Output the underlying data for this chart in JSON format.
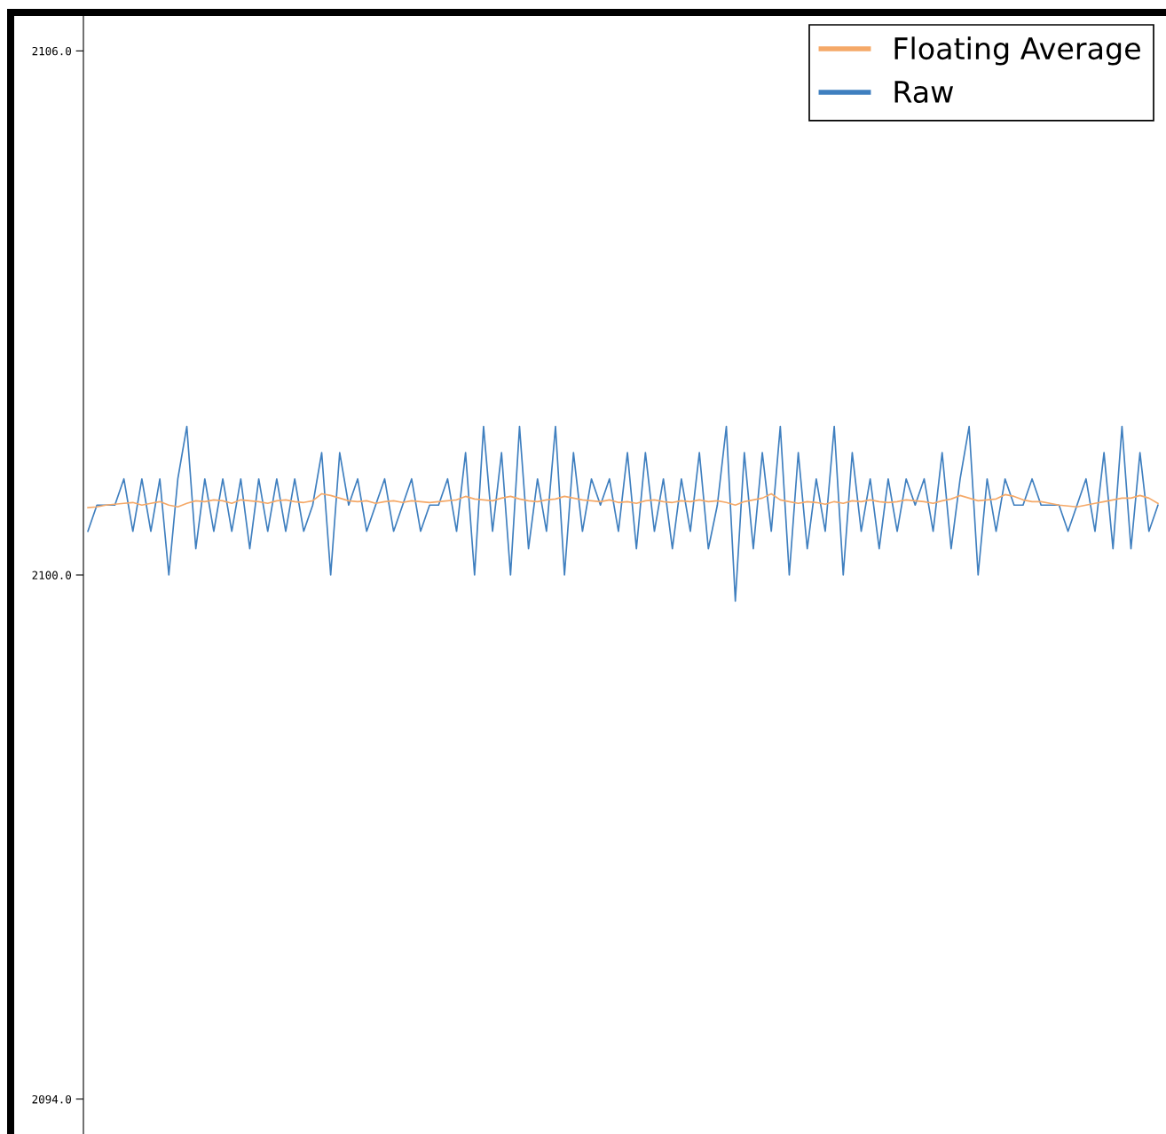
{
  "chart_data": {
    "type": "line",
    "categories": [
      null,
      null,
      null,
      null,
      null,
      null,
      null,
      null,
      null,
      null,
      null,
      null,
      null,
      null,
      null,
      null,
      null,
      null,
      null,
      null,
      null,
      null,
      null,
      null,
      null,
      null,
      null,
      null,
      null,
      null,
      null,
      null,
      null,
      null,
      null,
      null,
      null,
      null,
      null,
      null,
      null,
      null,
      null,
      null,
      null,
      null,
      null,
      null,
      null,
      null,
      null,
      null,
      null,
      null,
      null,
      null,
      null,
      null,
      null,
      null,
      null,
      null,
      null,
      null,
      null,
      null,
      null,
      null,
      null,
      null,
      null,
      null,
      null,
      null,
      null,
      null,
      null,
      null,
      null,
      null,
      null,
      null,
      null,
      null,
      null,
      null,
      null,
      null,
      null,
      null,
      null,
      null,
      null,
      null,
      null,
      null,
      null,
      null,
      null,
      null,
      null,
      null,
      null,
      null,
      null,
      null,
      null,
      null,
      null,
      null,
      null,
      null,
      null,
      null,
      null,
      null,
      null,
      null,
      null,
      null
    ],
    "series": [
      {
        "name": "Floating Average",
        "color": "#f5a968",
        "values": [
          2100.77,
          2100.78,
          2100.8,
          2100.81,
          2100.82,
          2100.83,
          2100.8,
          2100.82,
          2100.84,
          2100.8,
          2100.78,
          2100.82,
          2100.85,
          2100.84,
          2100.86,
          2100.85,
          2100.82,
          2100.86,
          2100.85,
          2100.84,
          2100.82,
          2100.85,
          2100.86,
          2100.84,
          2100.83,
          2100.85,
          2100.93,
          2100.91,
          2100.88,
          2100.85,
          2100.84,
          2100.85,
          2100.82,
          2100.84,
          2100.85,
          2100.83,
          2100.85,
          2100.84,
          2100.83,
          2100.84,
          2100.85,
          2100.86,
          2100.9,
          2100.87,
          2100.86,
          2100.85,
          2100.88,
          2100.9,
          2100.87,
          2100.85,
          2100.84,
          2100.86,
          2100.87,
          2100.9,
          2100.88,
          2100.86,
          2100.85,
          2100.84,
          2100.86,
          2100.83,
          2100.84,
          2100.82,
          2100.85,
          2100.86,
          2100.84,
          2100.83,
          2100.85,
          2100.84,
          2100.86,
          2100.84,
          2100.85,
          2100.83,
          2100.8,
          2100.84,
          2100.86,
          2100.88,
          2100.93,
          2100.86,
          2100.84,
          2100.82,
          2100.84,
          2100.83,
          2100.81,
          2100.84,
          2100.82,
          2100.85,
          2100.84,
          2100.86,
          2100.84,
          2100.83,
          2100.84,
          2100.86,
          2100.85,
          2100.84,
          2100.82,
          2100.85,
          2100.87,
          2100.91,
          2100.88,
          2100.85,
          2100.86,
          2100.87,
          2100.92,
          2100.9,
          2100.86,
          2100.84,
          2100.84,
          2100.82,
          2100.8,
          2100.79,
          2100.78,
          2100.8,
          2100.82,
          2100.84,
          2100.86,
          2100.88,
          2100.88,
          2100.91,
          2100.88,
          2100.82
        ]
      },
      {
        "name": "Raw",
        "color": "#3f7fbf",
        "values": [
          2100.5,
          2100.8,
          2100.8,
          2100.8,
          2101.1,
          2100.5,
          2101.1,
          2100.5,
          2101.1,
          2100.0,
          2101.1,
          2101.7,
          2100.3,
          2101.1,
          2100.5,
          2101.1,
          2100.5,
          2101.1,
          2100.3,
          2101.1,
          2100.5,
          2101.1,
          2100.5,
          2101.1,
          2100.5,
          2100.8,
          2101.4,
          2100.0,
          2101.4,
          2100.8,
          2101.1,
          2100.5,
          2100.8,
          2101.1,
          2100.5,
          2100.8,
          2101.1,
          2100.5,
          2100.8,
          2100.8,
          2101.1,
          2100.5,
          2101.4,
          2100.0,
          2101.7,
          2100.5,
          2101.4,
          2100.0,
          2101.7,
          2100.3,
          2101.1,
          2100.5,
          2101.7,
          2100.0,
          2101.4,
          2100.5,
          2101.1,
          2100.8,
          2101.1,
          2100.5,
          2101.4,
          2100.3,
          2101.4,
          2100.5,
          2101.1,
          2100.3,
          2101.1,
          2100.5,
          2101.4,
          2100.3,
          2100.8,
          2101.7,
          2099.7,
          2101.4,
          2100.3,
          2101.4,
          2100.5,
          2101.7,
          2100.0,
          2101.4,
          2100.3,
          2101.1,
          2100.5,
          2101.7,
          2100.0,
          2101.4,
          2100.5,
          2101.1,
          2100.3,
          2101.1,
          2100.5,
          2101.1,
          2100.8,
          2101.1,
          2100.5,
          2101.4,
          2100.3,
          2101.1,
          2101.7,
          2100.0,
          2101.1,
          2100.5,
          2101.1,
          2100.8,
          2100.8,
          2101.1,
          2100.8,
          2100.8,
          2100.8,
          2100.5,
          2100.8,
          2101.1,
          2100.5,
          2101.4,
          2100.3,
          2101.7,
          2100.3,
          2101.4,
          2100.5,
          2100.8
        ]
      }
    ],
    "ylim": [
      2093.6,
      2106.4
    ],
    "yticks": [
      {
        "value": 2094,
        "label": "2094.0"
      },
      {
        "value": 2100,
        "label": "2100.0"
      },
      {
        "value": 2106,
        "label": "2106.0"
      }
    ],
    "tick_labels": "y",
    "grid": false,
    "legend": "top right",
    "line_style": "solid",
    "marker": "none"
  }
}
